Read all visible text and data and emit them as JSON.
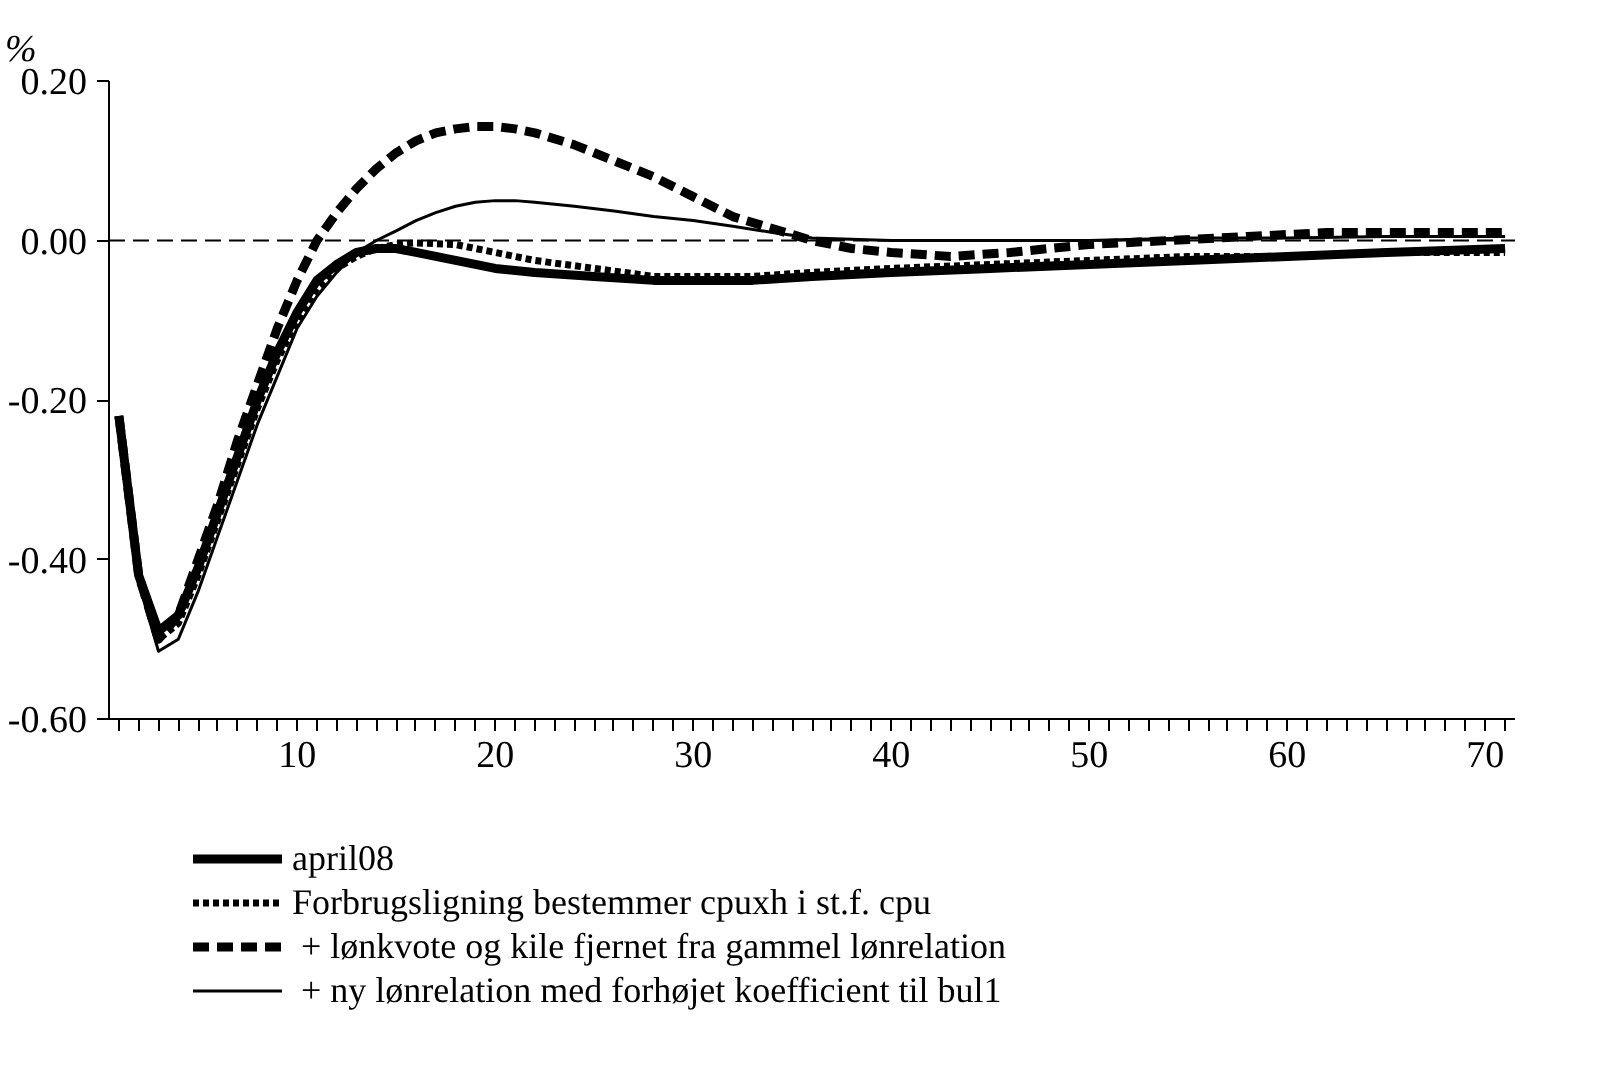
{
  "chart_data": {
    "type": "line",
    "ylabel": "%",
    "xlim": [
      0.5,
      71.5
    ],
    "ylim": [
      -0.6,
      0.2
    ],
    "yticks": [
      {
        "value": -0.6,
        "label": "-0.60"
      },
      {
        "value": -0.4,
        "label": "-0.40"
      },
      {
        "value": -0.2,
        "label": "-0.20"
      },
      {
        "value": 0,
        "label": "0.00"
      },
      {
        "value": 0.2,
        "label": "0.20"
      }
    ],
    "xticks": [
      {
        "value": 1,
        "label": null
      },
      {
        "value": 2,
        "label": null
      },
      {
        "value": 3,
        "label": null
      },
      {
        "value": 4,
        "label": null
      },
      {
        "value": 5,
        "label": null
      },
      {
        "value": 6,
        "label": null
      },
      {
        "value": 7,
        "label": null
      },
      {
        "value": 8,
        "label": null
      },
      {
        "value": 9,
        "label": null
      },
      10,
      {
        "value": 11,
        "label": null
      },
      {
        "value": 12,
        "label": null
      },
      {
        "value": 13,
        "label": null
      },
      {
        "value": 14,
        "label": null
      },
      {
        "value": 15,
        "label": null
      },
      {
        "value": 16,
        "label": null
      },
      {
        "value": 17,
        "label": null
      },
      {
        "value": 18,
        "label": null
      },
      {
        "value": 19,
        "label": null
      },
      20,
      {
        "value": 21,
        "label": null
      },
      {
        "value": 22,
        "label": null
      },
      {
        "value": 23,
        "label": null
      },
      {
        "value": 24,
        "label": null
      },
      {
        "value": 25,
        "label": null
      },
      {
        "value": 26,
        "label": null
      },
      {
        "value": 27,
        "label": null
      },
      {
        "value": 28,
        "label": null
      },
      {
        "value": 29,
        "label": null
      },
      30,
      {
        "value": 31,
        "label": null
      },
      {
        "value": 32,
        "label": null
      },
      {
        "value": 33,
        "label": null
      },
      {
        "value": 34,
        "label": null
      },
      {
        "value": 35,
        "label": null
      },
      {
        "value": 36,
        "label": null
      },
      {
        "value": 37,
        "label": null
      },
      {
        "value": 38,
        "label": null
      },
      {
        "value": 39,
        "label": null
      },
      40,
      {
        "value": 41,
        "label": null
      },
      {
        "value": 42,
        "label": null
      },
      {
        "value": 43,
        "label": null
      },
      {
        "value": 44,
        "label": null
      },
      {
        "value": 45,
        "label": null
      },
      {
        "value": 46,
        "label": null
      },
      {
        "value": 47,
        "label": null
      },
      {
        "value": 48,
        "label": null
      },
      {
        "value": 49,
        "label": null
      },
      50,
      {
        "value": 51,
        "label": null
      },
      {
        "value": 52,
        "label": null
      },
      {
        "value": 53,
        "label": null
      },
      {
        "value": 54,
        "label": null
      },
      {
        "value": 55,
        "label": null
      },
      {
        "value": 56,
        "label": null
      },
      {
        "value": 57,
        "label": null
      },
      {
        "value": 58,
        "label": null
      },
      {
        "value": 59,
        "label": null
      },
      60,
      {
        "value": 61,
        "label": null
      },
      {
        "value": 62,
        "label": null
      },
      {
        "value": 63,
        "label": null
      },
      {
        "value": 64,
        "label": null
      },
      {
        "value": 65,
        "label": null
      },
      {
        "value": 66,
        "label": null
      },
      {
        "value": 67,
        "label": null
      },
      {
        "value": 68,
        "label": null
      },
      {
        "value": 69,
        "label": null
      },
      70,
      {
        "value": 71,
        "label": null
      }
    ],
    "grid": false,
    "legend": "bottom",
    "marker": "none",
    "ref_lines": [
      {
        "axis": "y",
        "value": 0,
        "color": "#000000",
        "line_style": "dashed"
      }
    ],
    "series": [
      {
        "name": "april08",
        "color": "#000000",
        "line_style": "solid",
        "x": [
          1,
          2,
          3,
          4,
          5,
          6,
          7,
          8,
          9,
          10,
          11,
          12,
          13,
          14,
          15,
          16,
          18,
          20,
          22,
          25,
          28,
          30,
          33,
          36,
          40,
          45,
          50,
          55,
          60,
          65,
          71
        ],
        "values": [
          -0.22,
          -0.42,
          -0.49,
          -0.47,
          -0.41,
          -0.34,
          -0.27,
          -0.2,
          -0.14,
          -0.09,
          -0.05,
          -0.03,
          -0.015,
          -0.01,
          -0.01,
          -0.015,
          -0.025,
          -0.035,
          -0.04,
          -0.045,
          -0.05,
          -0.05,
          -0.05,
          -0.045,
          -0.04,
          -0.035,
          -0.03,
          -0.025,
          -0.02,
          -0.015,
          -0.01
        ]
      },
      {
        "name": "Forbrugsligning bestemmer cpuxh i st.f. cpu",
        "color": "#000000",
        "line_style": "dotted",
        "x": [
          1,
          2,
          3,
          4,
          5,
          6,
          7,
          8,
          9,
          10,
          11,
          12,
          13,
          14,
          15,
          16,
          18,
          20,
          22,
          25,
          28,
          30,
          33,
          36,
          40,
          45,
          50,
          55,
          60,
          65,
          71
        ],
        "values": [
          -0.22,
          -0.42,
          -0.5,
          -0.48,
          -0.42,
          -0.35,
          -0.28,
          -0.21,
          -0.15,
          -0.1,
          -0.06,
          -0.035,
          -0.02,
          -0.01,
          -0.005,
          -0.003,
          -0.005,
          -0.015,
          -0.025,
          -0.035,
          -0.045,
          -0.045,
          -0.045,
          -0.04,
          -0.035,
          -0.03,
          -0.025,
          -0.02,
          -0.02,
          -0.015,
          -0.015
        ]
      },
      {
        "name": " + lønkvote og kile fjernet fra gammel lønrelation",
        "color": "#000000",
        "line_style": "dashed",
        "x": [
          1,
          2,
          3,
          4,
          5,
          6,
          7,
          8,
          9,
          10,
          11,
          12,
          13,
          14,
          15,
          16,
          17,
          18,
          19,
          20,
          21,
          22,
          24,
          26,
          28,
          30,
          32,
          34,
          36,
          38,
          40,
          43,
          46,
          50,
          54,
          58,
          62,
          66,
          71
        ],
        "values": [
          -0.22,
          -0.42,
          -0.5,
          -0.47,
          -0.4,
          -0.33,
          -0.25,
          -0.18,
          -0.11,
          -0.05,
          0.0,
          0.035,
          0.065,
          0.09,
          0.11,
          0.125,
          0.135,
          0.14,
          0.143,
          0.143,
          0.14,
          0.135,
          0.12,
          0.1,
          0.08,
          0.055,
          0.03,
          0.015,
          0.0,
          -0.01,
          -0.015,
          -0.02,
          -0.015,
          -0.005,
          0.0,
          0.005,
          0.01,
          0.01,
          0.01
        ]
      },
      {
        "name": " + ny lønrelation med forhøjet koefficient til bul1",
        "color": "#000000",
        "line_style": "solid",
        "x": [
          1,
          2,
          3,
          4,
          5,
          6,
          7,
          8,
          9,
          10,
          11,
          12,
          13,
          14,
          15,
          16,
          17,
          18,
          19,
          20,
          21,
          22,
          24,
          26,
          28,
          30,
          32,
          34,
          36,
          40,
          45,
          50,
          55,
          60,
          65,
          71
        ],
        "values": [
          -0.22,
          -0.43,
          -0.515,
          -0.5,
          -0.44,
          -0.37,
          -0.3,
          -0.23,
          -0.17,
          -0.11,
          -0.07,
          -0.04,
          -0.015,
          0.0,
          0.012,
          0.025,
          0.035,
          0.043,
          0.048,
          0.05,
          0.05,
          0.048,
          0.043,
          0.037,
          0.03,
          0.025,
          0.018,
          0.01,
          0.003,
          0.0,
          0.0,
          0.0,
          0.003,
          0.003,
          0.005,
          0.005
        ]
      }
    ]
  }
}
